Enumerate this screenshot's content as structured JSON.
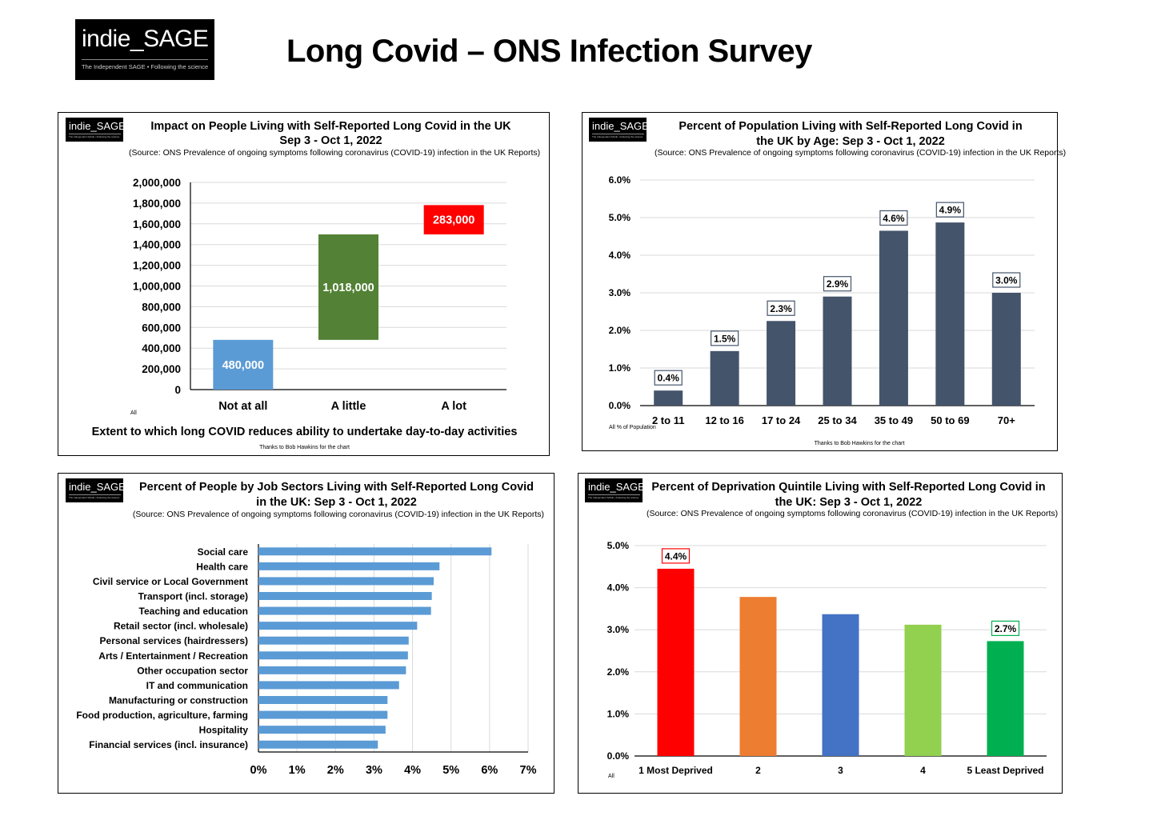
{
  "page": {
    "title": "Long Covid – ONS Infection Survey",
    "logo": {
      "name": "indie_SAGE",
      "tagline": "The Independent SAGE • Following the science"
    }
  },
  "chart_data": [
    {
      "type": "bar",
      "title": "Impact on People Living with Self-Reported Long Covid in the UK",
      "subtitle": "Sep 3 - Oct 1, 2022",
      "source": "(Source: ONS Prevalence of ongoing symptoms following coronavirus (COVID-19) infection in the UK Reports)",
      "categories": [
        "Not at all",
        "A little",
        "A lot"
      ],
      "series": [
        {
          "values": [
            480000,
            1018000,
            283000
          ],
          "bases": [
            0,
            480000,
            1498000
          ],
          "colors": [
            "#5B9BD5",
            "#538135",
            "#FF0000"
          ]
        }
      ],
      "data_labels": [
        "480,000",
        "1,018,000",
        "283,000"
      ],
      "y_ticks": [
        "0",
        "200,000",
        "400,000",
        "600,000",
        "800,000",
        "1,000,000",
        "1,200,000",
        "1,400,000",
        "1,600,000",
        "1,800,000",
        "2,000,000"
      ],
      "xlabel": "Extent to which long COVID reduces ability to undertake day-to-day activities",
      "ylim": [
        0,
        2000000
      ],
      "grid": true,
      "corner_note": "All",
      "credit": "Thanks to Bob Hawkins for the chart"
    },
    {
      "type": "bar",
      "title": "Percent of Population Living with Self-Reported Long Covid in the UK by Age: Sep 3 - Oct 1, 2022",
      "source": "(Source: ONS Prevalence of ongoing symptoms following coronavirus (COVID-19) infection in the UK Reports)",
      "categories": [
        "2 to 11",
        "12 to 16",
        "17 to 24",
        "25 to 34",
        "35 to 49",
        "50 to 69",
        "70+"
      ],
      "series": [
        {
          "values": [
            0.4,
            1.45,
            2.25,
            2.9,
            4.65,
            4.87,
            3.0
          ],
          "color": "#44546A"
        }
      ],
      "data_labels": [
        "0.4%",
        "1.5%",
        "2.3%",
        "2.9%",
        "4.6%",
        "4.9%",
        "3.0%"
      ],
      "y_ticks": [
        "0.0%",
        "1.0%",
        "2.0%",
        "3.0%",
        "4.0%",
        "5.0%",
        "6.0%"
      ],
      "ylim": [
        0,
        6
      ],
      "grid": true,
      "corner_note": "All % of Population",
      "credit": "Thanks to Bob Hawkins for the chart"
    },
    {
      "type": "bar",
      "orientation": "horizontal",
      "title": "Percent of People by Job Sectors Living with Self-Reported Long Covid in the UK:  Sep 3 - Oct 1, 2022",
      "source": "(Source: ONS Prevalence of ongoing symptoms following coronavirus (COVID-19) infection in the UK Reports)",
      "categories": [
        "Social care",
        "Health care",
        "Civil service or Local Government",
        "Transport (incl. storage)",
        "Teaching and education",
        "Retail sector (incl. wholesale)",
        "Personal services (hairdressers)",
        "Arts / Entertainment / Recreation",
        "Other occupation sector",
        "IT and communication",
        "Manufacturing or construction",
        "Food production, agriculture, farming",
        "Hospitality",
        "Financial services (incl. insurance)"
      ],
      "series": [
        {
          "values": [
            6.05,
            4.7,
            4.55,
            4.5,
            4.48,
            4.12,
            3.9,
            3.88,
            3.83,
            3.65,
            3.35,
            3.35,
            3.3,
            3.1
          ],
          "color": "#5B9BD5"
        }
      ],
      "x_ticks": [
        "0%",
        "1%",
        "2%",
        "3%",
        "4%",
        "5%",
        "6%",
        "7%"
      ],
      "xlim": [
        0,
        7
      ],
      "grid": true
    },
    {
      "type": "bar",
      "title": "Percent of Deprivation Quintile Living with Self-Reported Long Covid in the UK: Sep 3 - Oct 1, 2022",
      "source": "(Source: ONS Prevalence of ongoing symptoms following coronavirus (COVID-19) infection in the UK Reports)",
      "categories": [
        "1 Most Deprived",
        "2",
        "3",
        "4",
        "5 Least Deprived"
      ],
      "series": [
        {
          "values": [
            4.45,
            3.78,
            3.37,
            3.12,
            2.73
          ],
          "colors": [
            "#FF0000",
            "#ED7D31",
            "#4472C4",
            "#92D050",
            "#00B050"
          ]
        }
      ],
      "data_labels": [
        "4.4%",
        "",
        "",
        "",
        "2.7%"
      ],
      "y_ticks": [
        "0.0%",
        "1.0%",
        "2.0%",
        "3.0%",
        "4.0%",
        "5.0%"
      ],
      "ylim": [
        0,
        5
      ],
      "grid": true,
      "corner_note": "All"
    }
  ]
}
